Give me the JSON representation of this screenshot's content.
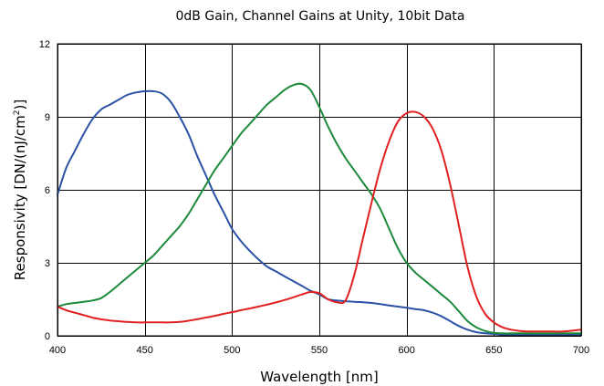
{
  "chart_data": {
    "type": "line",
    "title": "0dB Gain, Channel Gains at Unity, 10bit Data",
    "xlabel": "Wavelength [nm]",
    "ylabel_main": "Responsivity [DN/(nJ/cm",
    "ylabel_sup": "2",
    "ylabel_end": ")]",
    "xlim": [
      400,
      700
    ],
    "ylim": [
      0,
      12
    ],
    "xticks": [
      400,
      450,
      500,
      550,
      600,
      650,
      700
    ],
    "yticks": [
      0,
      3,
      6,
      9,
      12
    ],
    "grid": true,
    "legend": "none",
    "series": [
      {
        "color": "#2b52a6",
        "x": [
          400,
          405,
          410,
          415,
          420,
          425,
          430,
          435,
          440,
          445,
          450,
          455,
          460,
          465,
          470,
          475,
          480,
          485,
          490,
          495,
          500,
          505,
          510,
          515,
          520,
          525,
          530,
          535,
          540,
          545,
          550,
          555,
          560,
          565,
          570,
          575,
          580,
          585,
          590,
          595,
          600,
          605,
          610,
          615,
          620,
          625,
          630,
          635,
          640,
          645,
          650,
          655,
          660,
          665,
          670,
          680,
          690,
          700
        ],
        "y": [
          5.8,
          6.9,
          7.6,
          8.3,
          8.9,
          9.3,
          9.5,
          9.7,
          9.9,
          10.0,
          10.05,
          10.05,
          9.95,
          9.6,
          9.0,
          8.3,
          7.4,
          6.6,
          5.8,
          5.1,
          4.4,
          3.9,
          3.5,
          3.15,
          2.85,
          2.65,
          2.45,
          2.25,
          2.05,
          1.85,
          1.7,
          1.5,
          1.45,
          1.42,
          1.4,
          1.38,
          1.35,
          1.3,
          1.25,
          1.2,
          1.15,
          1.1,
          1.05,
          0.95,
          0.8,
          0.6,
          0.4,
          0.25,
          0.15,
          0.1,
          0.08,
          0.05,
          0.05,
          0.05,
          0.05,
          0.05,
          0.05,
          0.05
        ]
      },
      {
        "color": "#1e8a3c",
        "x": [
          400,
          405,
          410,
          415,
          420,
          425,
          430,
          435,
          440,
          445,
          450,
          455,
          460,
          465,
          470,
          475,
          480,
          485,
          490,
          495,
          500,
          505,
          510,
          515,
          520,
          525,
          530,
          535,
          540,
          545,
          550,
          555,
          560,
          565,
          570,
          575,
          580,
          585,
          590,
          595,
          600,
          605,
          610,
          615,
          620,
          625,
          630,
          635,
          640,
          645,
          650,
          655,
          660,
          665,
          670,
          680,
          690,
          700
        ],
        "y": [
          1.2,
          1.3,
          1.35,
          1.4,
          1.45,
          1.55,
          1.8,
          2.1,
          2.4,
          2.7,
          3.0,
          3.3,
          3.7,
          4.1,
          4.5,
          5.0,
          5.6,
          6.2,
          6.8,
          7.3,
          7.8,
          8.3,
          8.7,
          9.1,
          9.5,
          9.8,
          10.1,
          10.3,
          10.35,
          10.1,
          9.4,
          8.6,
          7.9,
          7.3,
          6.8,
          6.3,
          5.8,
          5.2,
          4.4,
          3.6,
          3.0,
          2.6,
          2.3,
          2.0,
          1.7,
          1.4,
          1.0,
          0.6,
          0.35,
          0.2,
          0.12,
          0.1,
          0.1,
          0.1,
          0.1,
          0.1,
          0.1,
          0.1
        ]
      },
      {
        "color": "#e02020",
        "x": [
          400,
          405,
          410,
          415,
          420,
          425,
          430,
          435,
          440,
          445,
          450,
          455,
          460,
          465,
          470,
          475,
          480,
          485,
          490,
          495,
          500,
          505,
          510,
          515,
          520,
          525,
          530,
          535,
          540,
          545,
          550,
          555,
          560,
          565,
          570,
          575,
          580,
          585,
          590,
          595,
          600,
          605,
          610,
          615,
          620,
          625,
          630,
          635,
          640,
          645,
          650,
          655,
          660,
          665,
          670,
          680,
          690,
          700
        ],
        "y": [
          1.2,
          1.05,
          0.95,
          0.85,
          0.75,
          0.68,
          0.63,
          0.6,
          0.57,
          0.55,
          0.55,
          0.55,
          0.55,
          0.55,
          0.57,
          0.62,
          0.68,
          0.75,
          0.82,
          0.9,
          0.97,
          1.05,
          1.12,
          1.2,
          1.28,
          1.37,
          1.47,
          1.58,
          1.7,
          1.8,
          1.75,
          1.5,
          1.38,
          1.45,
          2.5,
          4.0,
          5.5,
          6.9,
          8.0,
          8.8,
          9.15,
          9.2,
          9.0,
          8.5,
          7.6,
          6.2,
          4.5,
          2.8,
          1.6,
          0.9,
          0.55,
          0.35,
          0.25,
          0.2,
          0.18,
          0.18,
          0.18,
          0.25
        ]
      }
    ]
  }
}
